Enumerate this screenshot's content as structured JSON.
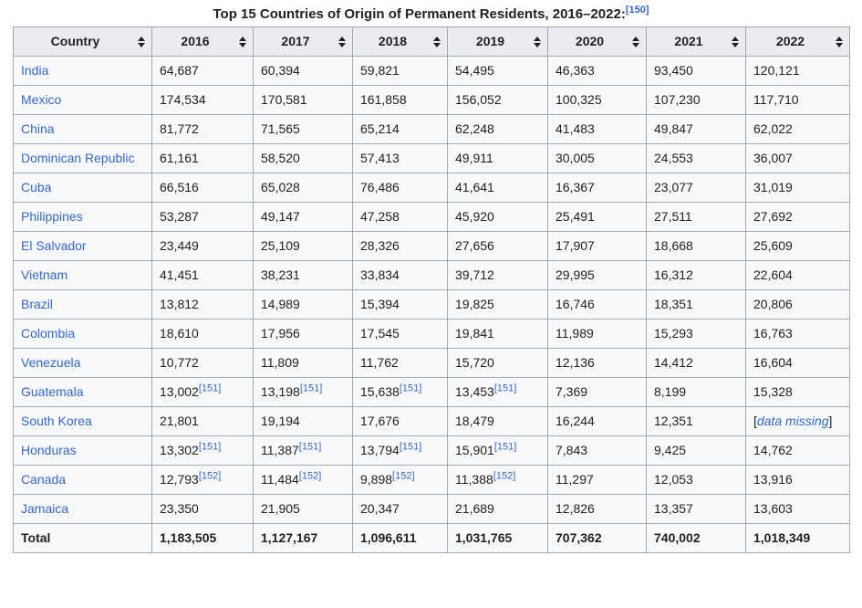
{
  "title": {
    "text": "Top 15 Countries of Origin of Permanent Residents, 2016–2022:",
    "ref": "[150]"
  },
  "colors": {
    "link_blue": "#3366cc",
    "border_gray": "#a2a9b1",
    "header_bg": "#eaecf0",
    "cell_bg": "#f8f9fa",
    "text": "#202122"
  },
  "icons": {
    "sort": "sort-up-down-icon"
  },
  "table": {
    "columns": [
      "Country",
      "2016",
      "2017",
      "2018",
      "2019",
      "2020",
      "2021",
      "2022"
    ],
    "rows": [
      {
        "country": "India",
        "cells": [
          {
            "t": "64,687"
          },
          {
            "t": "60,394"
          },
          {
            "t": "59,821"
          },
          {
            "t": "54,495"
          },
          {
            "t": "46,363"
          },
          {
            "t": "93,450"
          },
          {
            "t": "120,121"
          }
        ]
      },
      {
        "country": "Mexico",
        "cells": [
          {
            "t": "174,534"
          },
          {
            "t": "170,581"
          },
          {
            "t": "161,858"
          },
          {
            "t": "156,052"
          },
          {
            "t": "100,325"
          },
          {
            "t": "107,230"
          },
          {
            "t": "117,710"
          }
        ]
      },
      {
        "country": "China",
        "cells": [
          {
            "t": "81,772"
          },
          {
            "t": "71,565"
          },
          {
            "t": "65,214"
          },
          {
            "t": "62,248"
          },
          {
            "t": "41,483"
          },
          {
            "t": "49,847"
          },
          {
            "t": "62,022"
          }
        ]
      },
      {
        "country": "Dominican Republic",
        "cells": [
          {
            "t": "61,161"
          },
          {
            "t": "58,520"
          },
          {
            "t": "57,413"
          },
          {
            "t": "49,911"
          },
          {
            "t": "30,005"
          },
          {
            "t": "24,553"
          },
          {
            "t": "36,007"
          }
        ]
      },
      {
        "country": "Cuba",
        "cells": [
          {
            "t": "66,516"
          },
          {
            "t": "65,028"
          },
          {
            "t": "76,486"
          },
          {
            "t": "41,641"
          },
          {
            "t": "16,367"
          },
          {
            "t": "23,077"
          },
          {
            "t": "31,019"
          }
        ]
      },
      {
        "country": "Philippines",
        "cells": [
          {
            "t": "53,287"
          },
          {
            "t": "49,147"
          },
          {
            "t": "47,258"
          },
          {
            "t": "45,920"
          },
          {
            "t": "25,491"
          },
          {
            "t": "27,511"
          },
          {
            "t": "27,692"
          }
        ]
      },
      {
        "country": "El Salvador",
        "cells": [
          {
            "t": "23,449"
          },
          {
            "t": "25,109"
          },
          {
            "t": "28,326"
          },
          {
            "t": "27,656"
          },
          {
            "t": "17,907"
          },
          {
            "t": "18,668"
          },
          {
            "t": "25,609"
          }
        ]
      },
      {
        "country": "Vietnam",
        "cells": [
          {
            "t": "41,451"
          },
          {
            "t": "38,231"
          },
          {
            "t": "33,834"
          },
          {
            "t": "39,712"
          },
          {
            "t": "29,995"
          },
          {
            "t": "16,312"
          },
          {
            "t": "22,604"
          }
        ]
      },
      {
        "country": "Brazil",
        "cells": [
          {
            "t": "13,812"
          },
          {
            "t": "14,989"
          },
          {
            "t": "15,394"
          },
          {
            "t": "19,825"
          },
          {
            "t": "16,746"
          },
          {
            "t": "18,351"
          },
          {
            "t": "20,806"
          }
        ]
      },
      {
        "country": "Colombia",
        "cells": [
          {
            "t": "18,610"
          },
          {
            "t": "17,956"
          },
          {
            "t": "17,545"
          },
          {
            "t": "19,841"
          },
          {
            "t": "11,989"
          },
          {
            "t": "15,293"
          },
          {
            "t": "16,763"
          }
        ]
      },
      {
        "country": "Venezuela",
        "cells": [
          {
            "t": "10,772"
          },
          {
            "t": "11,809"
          },
          {
            "t": "11,762"
          },
          {
            "t": "15,720"
          },
          {
            "t": "12,136"
          },
          {
            "t": "14,412"
          },
          {
            "t": "16,604"
          }
        ]
      },
      {
        "country": "Guatemala",
        "cells": [
          {
            "t": "13,002",
            "ref": "[151]"
          },
          {
            "t": "13,198",
            "ref": "[151]"
          },
          {
            "t": "15,638",
            "ref": "[151]"
          },
          {
            "t": "13,453",
            "ref": "[151]"
          },
          {
            "t": "7,369"
          },
          {
            "t": "8,199"
          },
          {
            "t": "15,328"
          }
        ]
      },
      {
        "country": "South Korea",
        "cells": [
          {
            "t": "21,801"
          },
          {
            "t": "19,194"
          },
          {
            "t": "17,676"
          },
          {
            "t": "18,479"
          },
          {
            "t": "16,244"
          },
          {
            "t": "12,351"
          },
          {
            "missing": true,
            "t": "data missing"
          }
        ]
      },
      {
        "country": "Honduras",
        "cells": [
          {
            "t": "13,302",
            "ref": "[151]"
          },
          {
            "t": "11,387",
            "ref": "[151]"
          },
          {
            "t": "13,794",
            "ref": "[151]"
          },
          {
            "t": "15,901",
            "ref": "[151]"
          },
          {
            "t": "7,843"
          },
          {
            "t": "9,425"
          },
          {
            "t": "14,762"
          }
        ]
      },
      {
        "country": "Canada",
        "cells": [
          {
            "t": "12,793",
            "ref": "[152]"
          },
          {
            "t": "11,484",
            "ref": "[152]"
          },
          {
            "t": "9,898",
            "ref": "[152]"
          },
          {
            "t": "11,388",
            "ref": "[152]"
          },
          {
            "t": "11,297"
          },
          {
            "t": "12,053"
          },
          {
            "t": "13,916"
          }
        ]
      },
      {
        "country": "Jamaica",
        "cells": [
          {
            "t": "23,350"
          },
          {
            "t": "21,905"
          },
          {
            "t": "20,347"
          },
          {
            "t": "21,689"
          },
          {
            "t": "12,826"
          },
          {
            "t": "13,357"
          },
          {
            "t": "13,603"
          }
        ]
      }
    ],
    "total": {
      "label": "Total",
      "cells": [
        "1,183,505",
        "1,127,167",
        "1,096,611",
        "1,031,765",
        "707,362",
        "740,002",
        "1,018,349"
      ]
    }
  }
}
